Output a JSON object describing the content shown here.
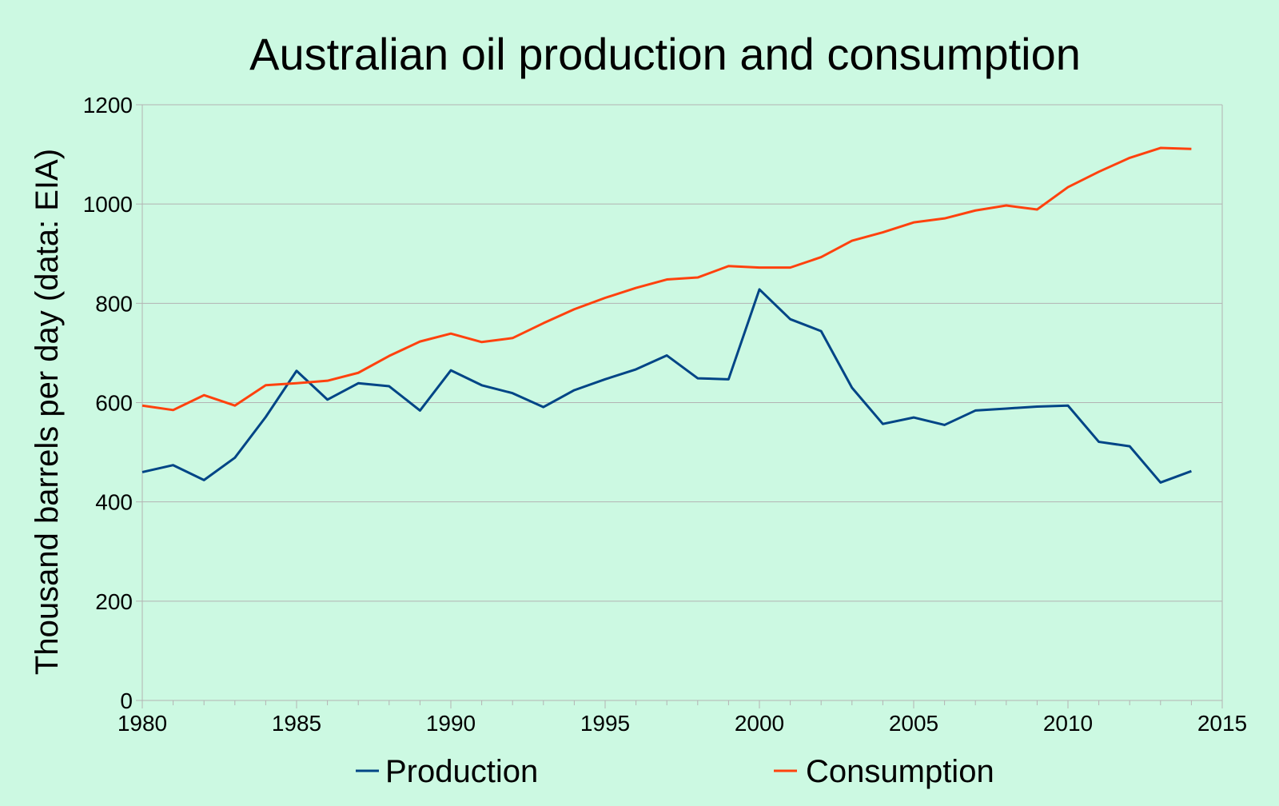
{
  "chart_data": {
    "type": "line",
    "title": "Australian oil production and consumption",
    "xlabel": "",
    "ylabel": "Thousand barrels per day (data: EIA)",
    "xlim": [
      1980,
      2015
    ],
    "ylim": [
      0,
      1200
    ],
    "xticks": [
      "1980",
      "1985",
      "1990",
      "1995",
      "2000",
      "2005",
      "2010",
      "2015"
    ],
    "yticks": [
      "0",
      "200",
      "400",
      "600",
      "800",
      "1000",
      "1200"
    ],
    "grid": true,
    "legend_position": "bottom",
    "x": [
      1980,
      1981,
      1982,
      1983,
      1984,
      1985,
      1986,
      1987,
      1988,
      1989,
      1990,
      1991,
      1992,
      1993,
      1994,
      1995,
      1996,
      1997,
      1998,
      1999,
      2000,
      2001,
      2002,
      2003,
      2004,
      2005,
      2006,
      2007,
      2008,
      2009,
      2010,
      2011,
      2012,
      2013,
      2014
    ],
    "series": [
      {
        "name": "Production",
        "color": "#004586",
        "values": [
          460,
          474,
          444,
          489,
          571,
          664,
          606,
          639,
          633,
          584,
          665,
          635,
          619,
          591,
          625,
          647,
          667,
          695,
          649,
          647,
          828,
          768,
          744,
          630,
          557,
          570,
          555,
          584,
          588,
          592,
          594,
          521,
          512,
          439,
          462
        ]
      },
      {
        "name": "Consumption",
        "color": "#ff420e",
        "values": [
          594,
          585,
          615,
          594,
          635,
          639,
          644,
          660,
          694,
          723,
          739,
          722,
          730,
          760,
          788,
          811,
          831,
          848,
          852,
          875,
          872,
          872,
          893,
          926,
          943,
          963,
          971,
          987,
          997,
          989,
          1034,
          1065,
          1093,
          1113,
          1111
        ]
      }
    ]
  }
}
